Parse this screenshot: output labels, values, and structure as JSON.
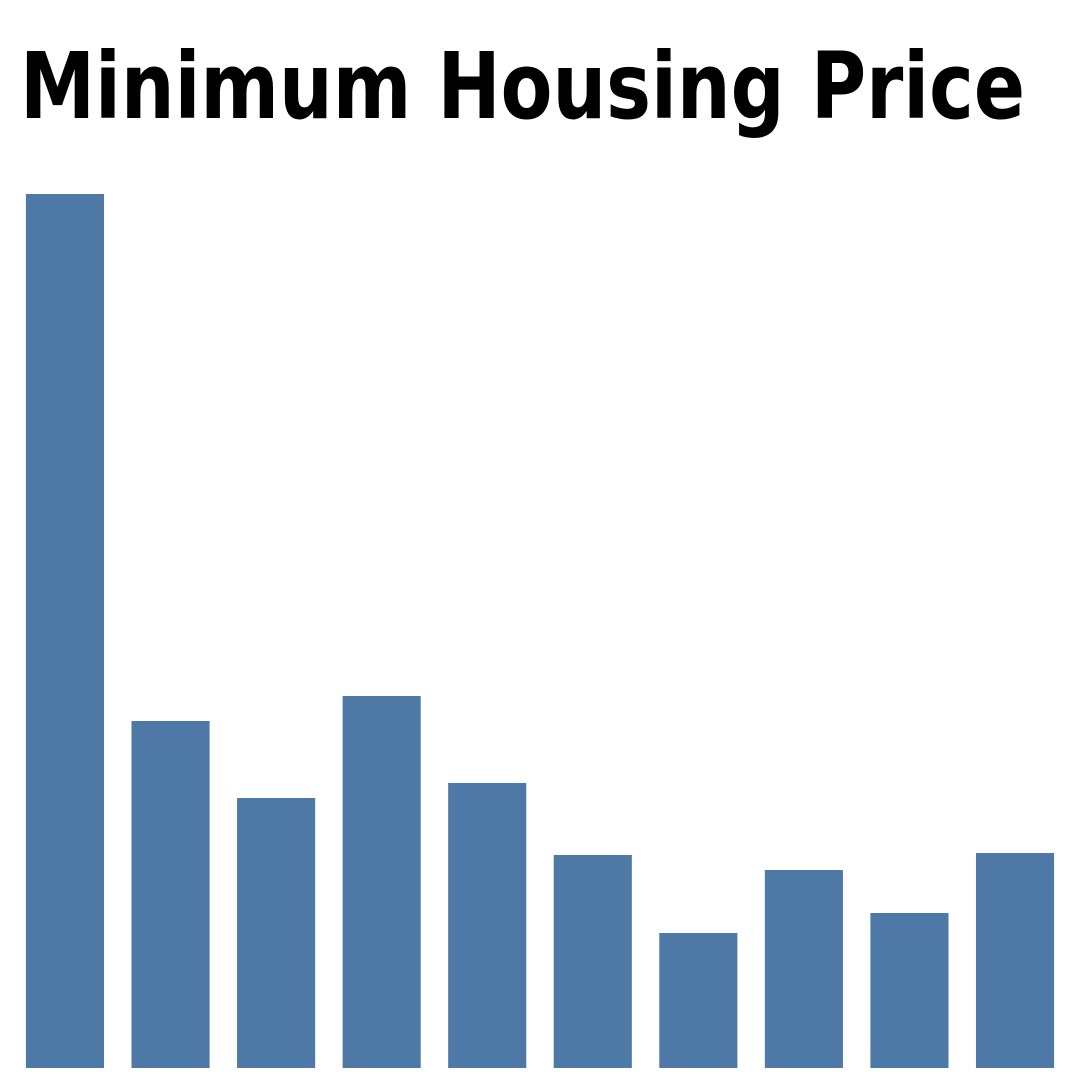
{
  "chart_data": {
    "type": "bar",
    "title": "Minimum Housing Price",
    "values": [
      874,
      347,
      270,
      372,
      285,
      213,
      135,
      198,
      155,
      215
    ],
    "color": "#4e79a7",
    "ylim": [
      0,
      874
    ]
  }
}
